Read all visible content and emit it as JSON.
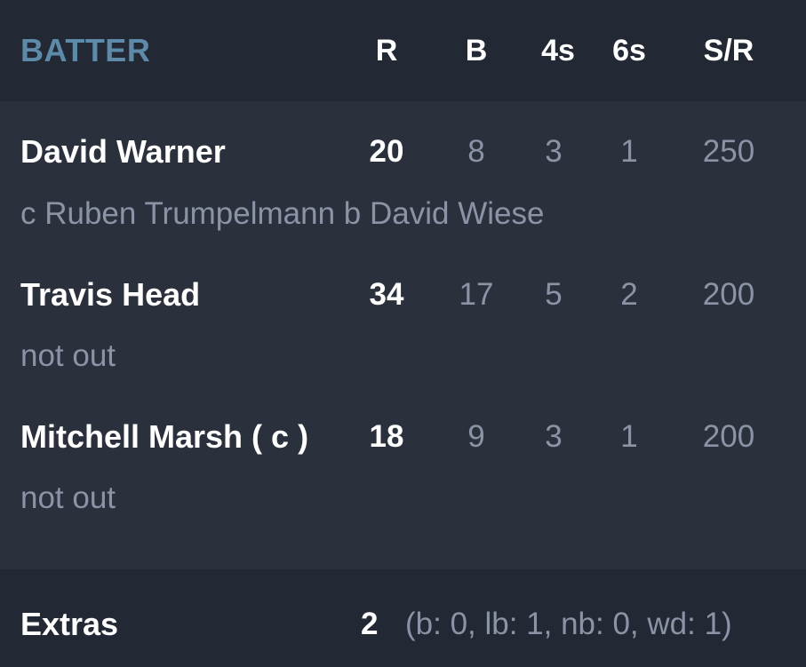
{
  "header": {
    "title": "BATTER",
    "columns": [
      "R",
      "B",
      "4s",
      "6s",
      "S/R"
    ]
  },
  "batters": [
    {
      "name": "David Warner",
      "dismissal": "c Ruben Trumpelmann b David Wiese",
      "runs": "20",
      "balls": "8",
      "fours": "3",
      "sixes": "1",
      "strike_rate": "250"
    },
    {
      "name": "Travis Head",
      "dismissal": "not out",
      "runs": "34",
      "balls": "17",
      "fours": "5",
      "sixes": "2",
      "strike_rate": "200"
    },
    {
      "name": "Mitchell Marsh ( c )",
      "dismissal": "not out",
      "runs": "18",
      "balls": "9",
      "fours": "3",
      "sixes": "1",
      "strike_rate": "200"
    }
  ],
  "extras": {
    "label": "Extras",
    "total": "2",
    "detail": "(b: 0, lb: 1, nb: 0, wd: 1)"
  },
  "colors": {
    "header_bg": "#222834",
    "body_bg": "#2b313c",
    "title_accent": "#5d8aa8",
    "muted_text": "#8b94a6",
    "primary_text": "#ffffff"
  }
}
